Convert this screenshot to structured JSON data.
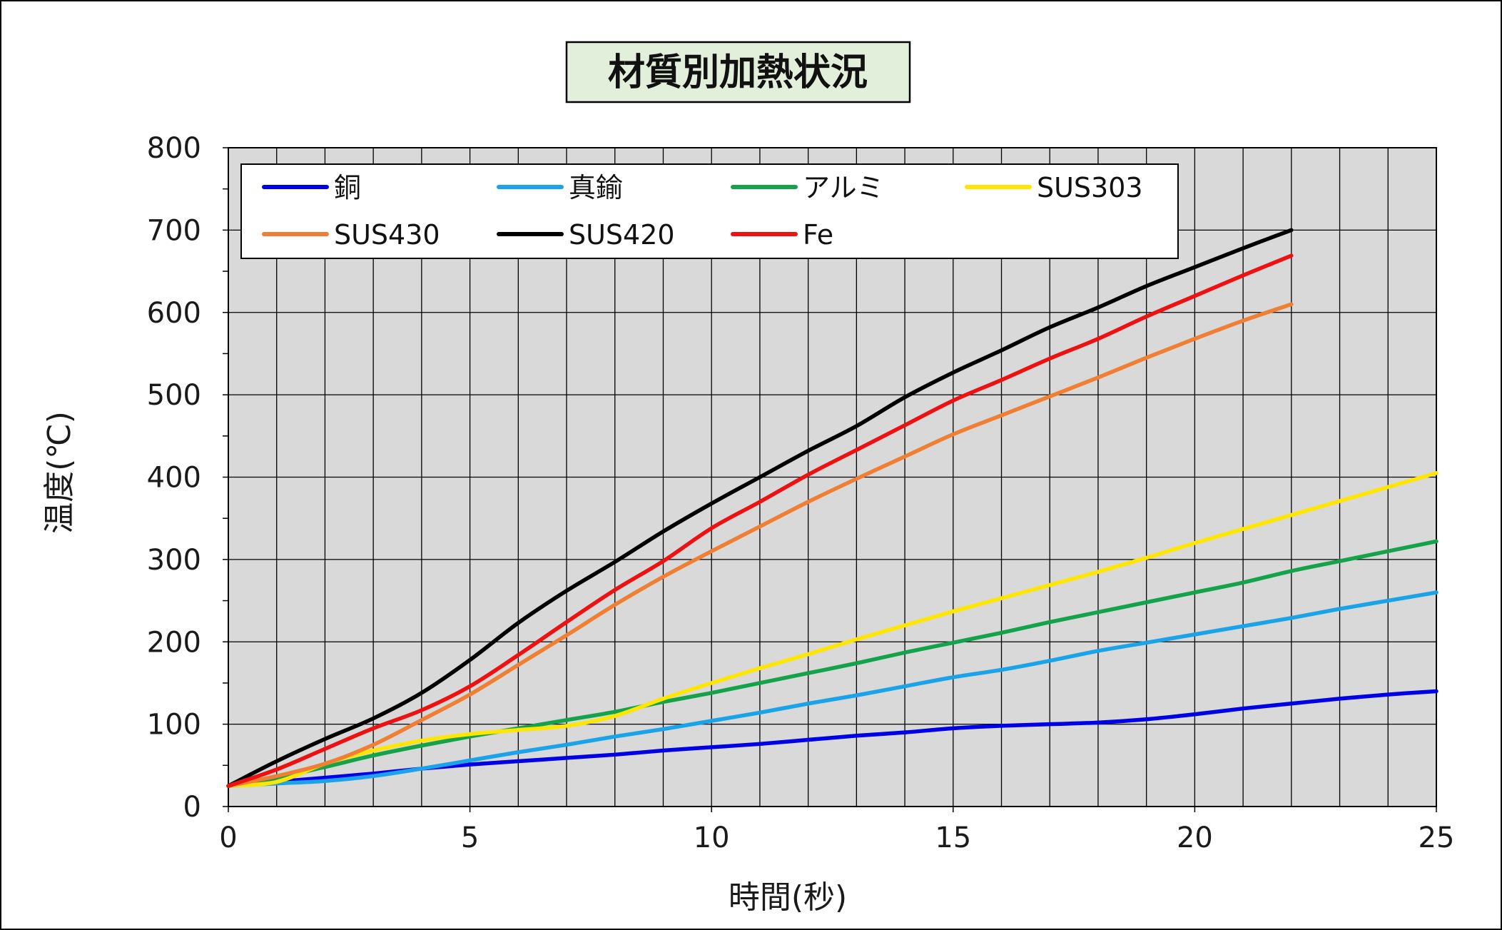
{
  "chart_data": {
    "type": "line",
    "title": "材質別加熱状況",
    "xlabel": "時間(秒)",
    "ylabel": "温度(℃)",
    "xlim": [
      0,
      25
    ],
    "ylim": [
      0,
      800
    ],
    "xticks": [
      0,
      5,
      10,
      15,
      20,
      25
    ],
    "yticks": [
      0,
      100,
      200,
      300,
      400,
      500,
      600,
      700,
      800
    ],
    "grid": true,
    "legend_position": "top-left",
    "colors": {
      "plot_background": "#d9d9d9",
      "title_background": "#e2efda"
    },
    "series": [
      {
        "name": "銅",
        "color": "#0000e6",
        "x": [
          0,
          1,
          2,
          3,
          4,
          5,
          6,
          7,
          8,
          9,
          10,
          11,
          12,
          13,
          14,
          15,
          16,
          17,
          18,
          19,
          20,
          21,
          22,
          23,
          24,
          25
        ],
        "y": [
          25,
          30,
          35,
          40,
          46,
          51,
          55,
          59,
          63,
          68,
          72,
          76,
          81,
          86,
          90,
          95,
          98,
          100,
          102,
          106,
          112,
          119,
          125,
          131,
          136,
          140
        ]
      },
      {
        "name": "真鍮",
        "color": "#1aa3e8",
        "x": [
          0,
          1,
          2,
          3,
          4,
          5,
          6,
          7,
          8,
          9,
          10,
          11,
          12,
          13,
          14,
          15,
          16,
          17,
          18,
          19,
          20,
          21,
          22,
          23,
          24,
          25
        ],
        "y": [
          25,
          28,
          31,
          37,
          46,
          56,
          66,
          75,
          85,
          94,
          104,
          114,
          125,
          135,
          146,
          157,
          166,
          177,
          189,
          199,
          209,
          219,
          229,
          240,
          250,
          260
        ]
      },
      {
        "name": "アルミ",
        "color": "#14a34a",
        "x": [
          0,
          1,
          2,
          3,
          4,
          5,
          6,
          7,
          8,
          9,
          10,
          11,
          12,
          13,
          14,
          15,
          16,
          17,
          18,
          19,
          20,
          21,
          22,
          23,
          24,
          25
        ],
        "y": [
          25,
          35,
          48,
          62,
          74,
          85,
          95,
          105,
          115,
          127,
          138,
          150,
          162,
          174,
          187,
          199,
          211,
          224,
          236,
          248,
          260,
          272,
          286,
          298,
          310,
          322
        ]
      },
      {
        "name": "SUS303",
        "color": "#ffe600",
        "x": [
          0,
          1,
          2,
          3,
          4,
          5,
          6,
          7,
          8,
          9,
          10,
          11,
          12,
          13,
          14,
          15,
          16,
          17,
          18,
          19,
          20,
          21,
          22,
          23,
          24,
          25
        ],
        "y": [
          25,
          30,
          52,
          68,
          80,
          88,
          93,
          98,
          110,
          131,
          150,
          168,
          185,
          203,
          220,
          237,
          253,
          269,
          285,
          302,
          320,
          337,
          354,
          371,
          388,
          405
        ]
      },
      {
        "name": "SUS430",
        "color": "#f07f33",
        "x": [
          0,
          1,
          2,
          3,
          4,
          5,
          6,
          7,
          8,
          9,
          10,
          11,
          12,
          13,
          14,
          15,
          16,
          17,
          18,
          19,
          20,
          21,
          22
        ],
        "y": [
          25,
          37,
          52,
          75,
          105,
          136,
          172,
          208,
          245,
          279,
          310,
          340,
          370,
          398,
          425,
          452,
          475,
          498,
          521,
          545,
          568,
          590,
          610
        ]
      },
      {
        "name": "SUS420",
        "color": "#000000",
        "x": [
          0,
          1,
          2,
          3,
          4,
          5,
          6,
          7,
          8,
          9,
          10,
          11,
          12,
          13,
          14,
          15,
          16,
          17,
          18,
          19,
          20,
          21,
          22
        ],
        "y": [
          25,
          55,
          82,
          107,
          138,
          178,
          223,
          262,
          297,
          334,
          368,
          400,
          432,
          462,
          497,
          527,
          554,
          582,
          606,
          632,
          655,
          678,
          700
        ]
      },
      {
        "name": "Fe",
        "color": "#ee1111",
        "x": [
          0,
          1,
          2,
          3,
          4,
          5,
          6,
          7,
          8,
          9,
          10,
          11,
          12,
          13,
          14,
          15,
          16,
          17,
          18,
          19,
          20,
          21,
          22
        ],
        "y": [
          25,
          45,
          70,
          95,
          117,
          146,
          184,
          224,
          263,
          298,
          338,
          370,
          403,
          433,
          463,
          493,
          518,
          544,
          568,
          595,
          620,
          645,
          669
        ]
      }
    ]
  }
}
